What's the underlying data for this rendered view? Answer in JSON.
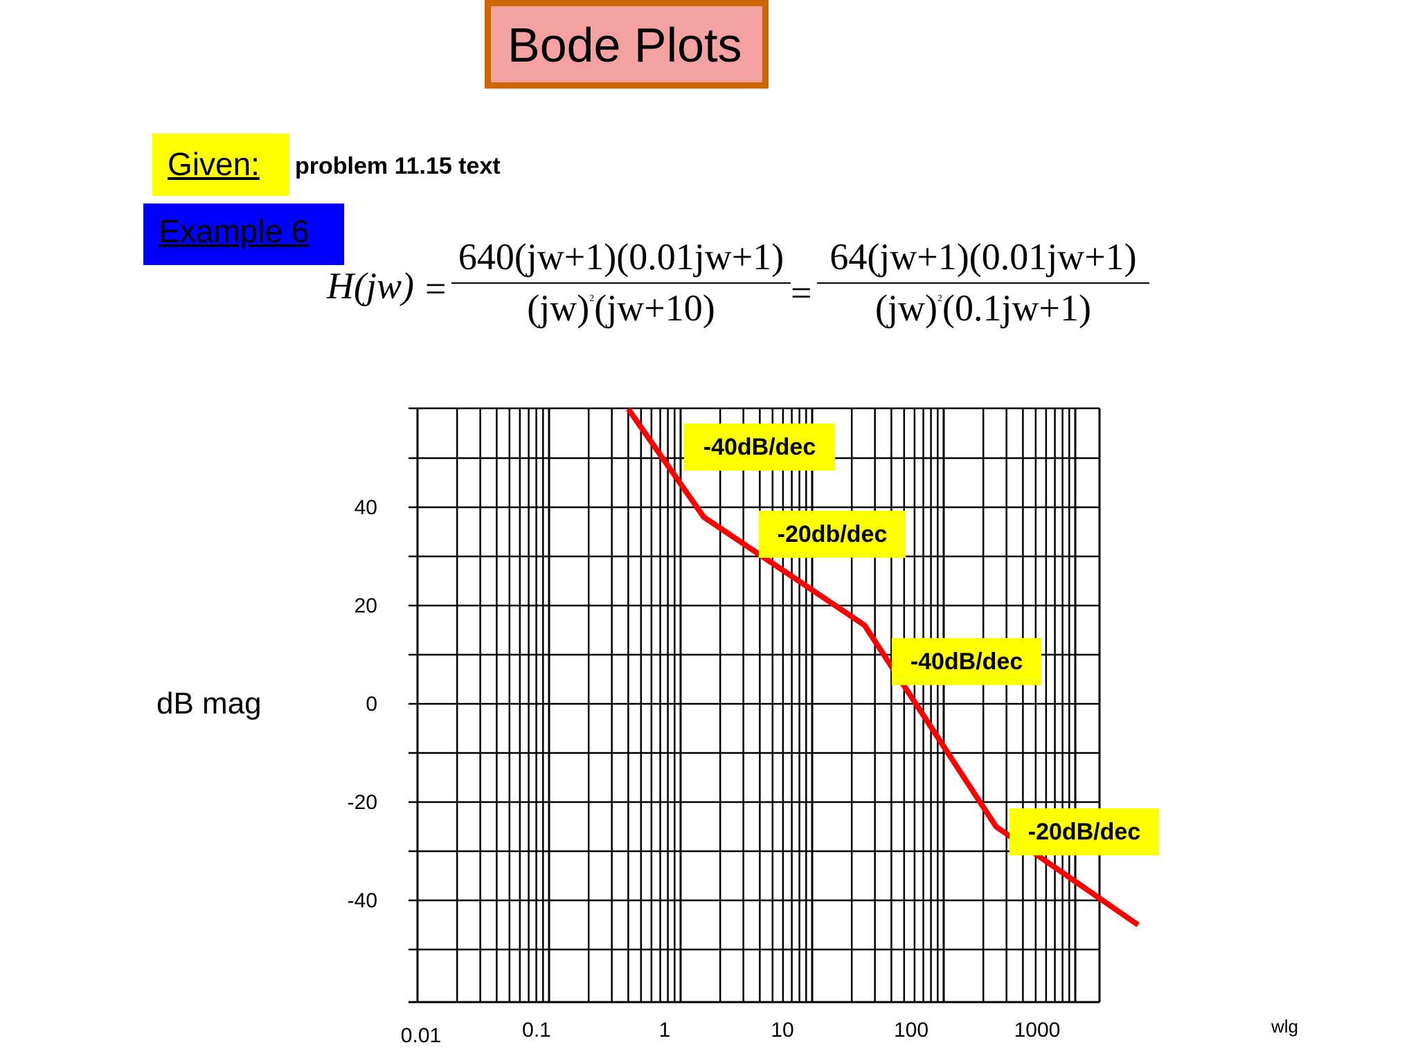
{
  "title": "Bode Plots",
  "given": {
    "label": "Given:",
    "text": "problem 11.15 text"
  },
  "example": {
    "label": "Example 6"
  },
  "equation": {
    "lhs": "H(jw)",
    "eq": "=",
    "frac1_num": "640(jw+1)(0.01jw+1)",
    "frac1_den_a": "(jw)",
    "frac1_den_sup": "2",
    "frac1_den_b": "(jw+10)",
    "frac2_num": "64(jw+1)(0.01jw+1)",
    "frac2_den_a": "(jw)",
    "frac2_den_sup": "2",
    "frac2_den_b": "(0.1jw+1)"
  },
  "chart_data": {
    "type": "line",
    "title": "",
    "xlabel": "wlg",
    "ylabel": "dB mag",
    "x_scale": "log",
    "xlim": [
      0.01,
      3000
    ],
    "ylim": [
      -60,
      60
    ],
    "grid": true,
    "x_tick_labels": [
      "0.01",
      "0.1",
      "1",
      "10",
      "100",
      "1000"
    ],
    "y_ticks": [
      40,
      20,
      0,
      -20,
      -40
    ],
    "y_tick_labels": [
      "40",
      "20",
      "0",
      "-20",
      "-40"
    ],
    "series": [
      {
        "color": "#ff0000",
        "x": [
          0.4,
          1.5,
          25,
          250,
          3000
        ],
        "y": [
          60,
          38,
          16,
          -25,
          -45
        ]
      }
    ],
    "annotations": [
      {
        "text": "-40dB/dec"
      },
      {
        "text": "-20db/dec"
      },
      {
        "text": "-40dB/dec"
      },
      {
        "text": "-20dB/dec"
      }
    ]
  }
}
